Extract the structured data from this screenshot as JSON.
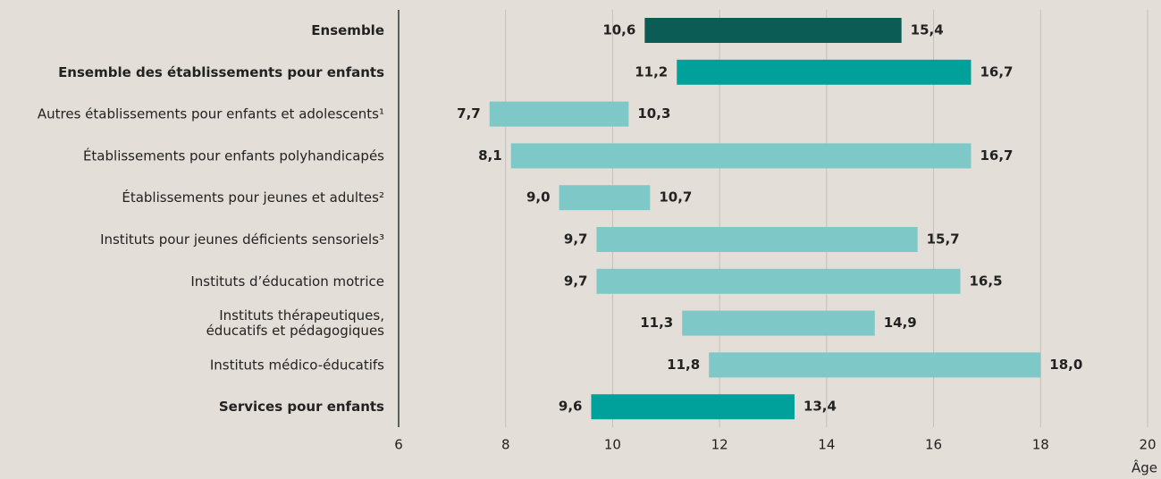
{
  "chart_data": {
    "type": "range_bar",
    "categories": [
      "Ensemble",
      "Ensemble des établissements pour enfants",
      "Autres établissements pour enfants et adolescents¹",
      "Établissements pour enfants polyhandicapés",
      "Établissements pour jeunes et adultes²",
      "Instituts pour jeunes déficients sensoriels³",
      "Instituts d’éducation motrice",
      "Instituts thérapeutiques,\néducatifs et pédagogiques",
      "Instituts médico-éducatifs",
      "Services pour enfants"
    ],
    "bold": [
      true,
      true,
      false,
      false,
      false,
      false,
      false,
      false,
      false,
      true
    ],
    "colors": [
      "#0b5c55",
      "#00a19a",
      "#7ec8c8",
      "#7ec8c8",
      "#7ec8c8",
      "#7ec8c8",
      "#7ec8c8",
      "#7ec8c8",
      "#7ec8c8",
      "#00a19a"
    ],
    "series": [
      {
        "values": [
          10.6,
          11.2,
          7.7,
          8.1,
          9.0,
          9.7,
          9.7,
          11.3,
          11.8,
          9.6
        ],
        "value_labels": [
          "10,6",
          "11,2",
          "7,7",
          "8,1",
          "9,0",
          "9,7",
          "9,7",
          "11,3",
          "11,8",
          "9,6"
        ]
      },
      {
        "values": [
          15.4,
          16.7,
          10.3,
          16.7,
          10.7,
          15.7,
          16.5,
          14.9,
          18.0,
          13.4
        ],
        "value_labels": [
          "15,4",
          "16,7",
          "10,3",
          "16,7",
          "10,7",
          "15,7",
          "16,5",
          "14,9",
          "18,0",
          "13,4"
        ]
      }
    ],
    "xlim": [
      6,
      20
    ],
    "xticks": [
      6,
      8,
      10,
      12,
      14,
      16,
      18,
      20
    ],
    "x_label": "Âge",
    "grid": true
  }
}
